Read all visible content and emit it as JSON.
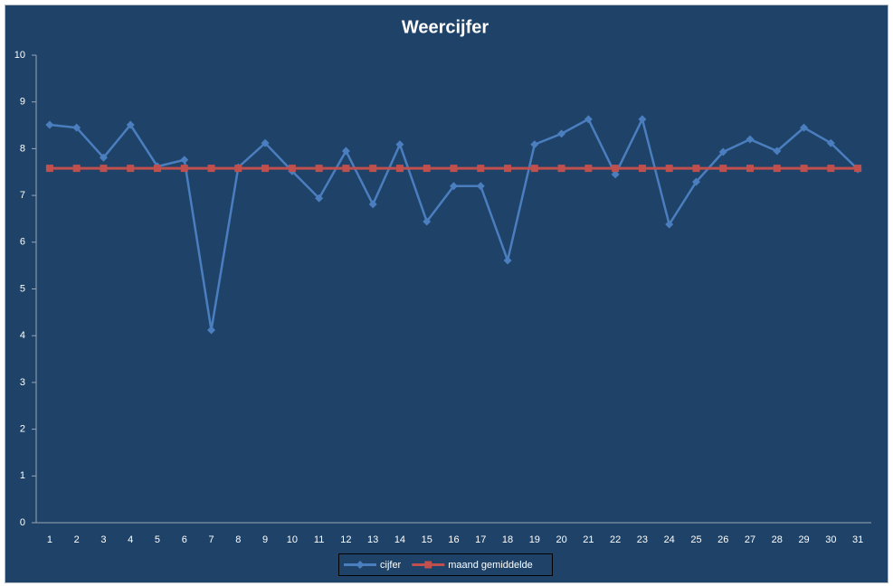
{
  "chart_data": {
    "type": "line",
    "title": "Weercijfer",
    "categories": [
      "1",
      "2",
      "3",
      "4",
      "5",
      "6",
      "7",
      "8",
      "9",
      "10",
      "11",
      "12",
      "13",
      "14",
      "15",
      "16",
      "17",
      "18",
      "19",
      "20",
      "21",
      "22",
      "23",
      "24",
      "25",
      "26",
      "27",
      "28",
      "29",
      "30",
      "31"
    ],
    "series": [
      {
        "name": "cijfer",
        "color": "#4a7ebf",
        "marker": "diamond",
        "values": [
          8.51,
          8.45,
          7.81,
          8.51,
          7.62,
          7.76,
          4.12,
          7.6,
          8.12,
          7.52,
          6.94,
          7.95,
          6.81,
          8.09,
          6.44,
          7.2,
          7.2,
          5.61,
          8.09,
          8.32,
          8.63,
          7.45,
          8.63,
          6.38,
          7.29,
          7.93,
          8.2,
          7.95,
          8.45,
          8.12,
          7.56
        ]
      },
      {
        "name": "maand gemiddelde",
        "color": "#c0504d",
        "marker": "square",
        "values": [
          7.58,
          7.58,
          7.58,
          7.58,
          7.58,
          7.58,
          7.58,
          7.58,
          7.58,
          7.58,
          7.58,
          7.58,
          7.58,
          7.58,
          7.58,
          7.58,
          7.58,
          7.58,
          7.58,
          7.58,
          7.58,
          7.58,
          7.58,
          7.58,
          7.58,
          7.58,
          7.58,
          7.58,
          7.58,
          7.58,
          7.58
        ]
      }
    ],
    "ylim": [
      0,
      10
    ],
    "yticks": [
      0,
      1,
      2,
      3,
      4,
      5,
      6,
      7,
      8,
      9,
      10
    ],
    "grid": false,
    "legend": "bottom"
  }
}
